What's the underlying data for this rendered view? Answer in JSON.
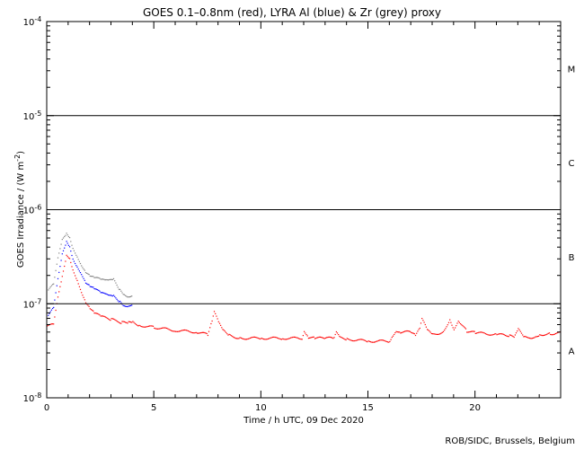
{
  "chart_data": {
    "type": "scatter",
    "title": "GOES 0.1–0.8nm (red), LYRA Al (blue) & Zr (grey) proxy",
    "xlabel": "Time / h UTC, 09 Dec 2020",
    "ylabel_prefix": "GOES Irradiance / (W m",
    "ylabel_exp": "-2",
    "ylabel_suffix": ")",
    "xlim": [
      0,
      24
    ],
    "ylim": [
      1e-08,
      0.0001
    ],
    "yscale": "log",
    "x_ticks": [
      "0",
      "5",
      "10",
      "15",
      "20"
    ],
    "y_ticks": [
      {
        "base": "10",
        "exp": "-8"
      },
      {
        "base": "10",
        "exp": "-7"
      },
      {
        "base": "10",
        "exp": "-6"
      },
      {
        "base": "10",
        "exp": "-5"
      },
      {
        "base": "10",
        "exp": "-4"
      }
    ],
    "flare_classes": [
      "A",
      "B",
      "C",
      "M"
    ],
    "class_thresholds": [
      1e-07,
      1e-06,
      1e-05
    ],
    "colors": {
      "goes": "#ff0000",
      "al": "#0000ff",
      "zr": "#808080",
      "axes": "#000000"
    },
    "series": [
      {
        "name": "GOES 0.1–0.8nm",
        "color": "#ff0000",
        "x": [
          0,
          0.3,
          0.5,
          0.7,
          0.9,
          1.05,
          1.2,
          1.4,
          1.6,
          1.8,
          2.0,
          2.2,
          2.5,
          3.0,
          3.5,
          3.8,
          4.0,
          4.3,
          5.0,
          6.0,
          7.0,
          7.5,
          7.7,
          7.8,
          8.0,
          8.2,
          8.5,
          9,
          10,
          11,
          11.9,
          12.0,
          12.2,
          12.5,
          13,
          13.4,
          13.5,
          13.7,
          14,
          15,
          16,
          16.1,
          16.3,
          16.5,
          17,
          17.2,
          17.4,
          17.5,
          17.8,
          18,
          18.5,
          18.8,
          19.0,
          19.2,
          19.6,
          20,
          21,
          21.6,
          21.8,
          22,
          22.3,
          22.8,
          23,
          23.5,
          24
        ],
        "y": [
          5.8e-08,
          6e-08,
          1.15e-07,
          1.9e-07,
          3.2e-07,
          3e-07,
          2.3e-07,
          1.8e-07,
          1.35e-07,
          1.05e-07,
          9e-08,
          8e-08,
          7.3e-08,
          6.8e-08,
          6.3e-08,
          6.3e-08,
          6.4e-08,
          5.9e-08,
          5.6e-08,
          5.2e-08,
          5e-08,
          4.7e-08,
          6.6e-08,
          8.2e-08,
          6.3e-08,
          5.2e-08,
          4.6e-08,
          4.3e-08,
          4.3e-08,
          4.3e-08,
          4.3e-08,
          5.2e-08,
          4.4e-08,
          4.3e-08,
          4.3e-08,
          4.3e-08,
          4.9e-08,
          4.3e-08,
          4.2e-08,
          4e-08,
          4e-08,
          4.5e-08,
          5.2e-08,
          5e-08,
          5e-08,
          4.6e-08,
          5.4e-08,
          6.8e-08,
          5.1e-08,
          4.7e-08,
          5e-08,
          6.8e-08,
          5.4e-08,
          6.7e-08,
          5.1e-08,
          4.9e-08,
          4.7e-08,
          4.6e-08,
          4.3e-08,
          5.3e-08,
          4.4e-08,
          4.4e-08,
          4.7e-08,
          4.8e-08,
          4.9e-08
        ]
      },
      {
        "name": "LYRA Al",
        "color": "#0000ff",
        "x": [
          0.05,
          0.3,
          0.5,
          0.7,
          0.9,
          1.05,
          1.2,
          1.4,
          1.6,
          1.8,
          2.0,
          2.2,
          2.5,
          2.7,
          2.9,
          3.1,
          3.4,
          3.6,
          3.8,
          4.0
        ],
        "y": [
          7.5e-08,
          9e-08,
          1.8e-07,
          3.3e-07,
          4.5e-07,
          4e-07,
          3e-07,
          2.5e-07,
          2.1e-07,
          1.7e-07,
          1.55e-07,
          1.45e-07,
          1.3e-07,
          1.25e-07,
          1.2e-07,
          1.2e-07,
          1.05e-07,
          9.5e-08,
          9.6e-08,
          1e-07
        ]
      },
      {
        "name": "Zr",
        "color": "#808080",
        "x": [
          0.05,
          0.3,
          0.5,
          0.7,
          0.9,
          1.05,
          1.2,
          1.4,
          1.6,
          1.8,
          2.0,
          2.2,
          2.5,
          2.7,
          2.9,
          3.1,
          3.4,
          3.6,
          3.8,
          4.0
        ],
        "y": [
          1.4e-07,
          1.6e-07,
          3e-07,
          4.7e-07,
          5.5e-07,
          5e-07,
          3.9e-07,
          3.2e-07,
          2.6e-07,
          2.2e-07,
          2e-07,
          1.9e-07,
          1.8e-07,
          1.75e-07,
          1.75e-07,
          1.8e-07,
          1.4e-07,
          1.25e-07,
          1.2e-07,
          1.25e-07
        ]
      }
    ]
  },
  "credit": "ROB/SIDC, Brussels, Belgium"
}
